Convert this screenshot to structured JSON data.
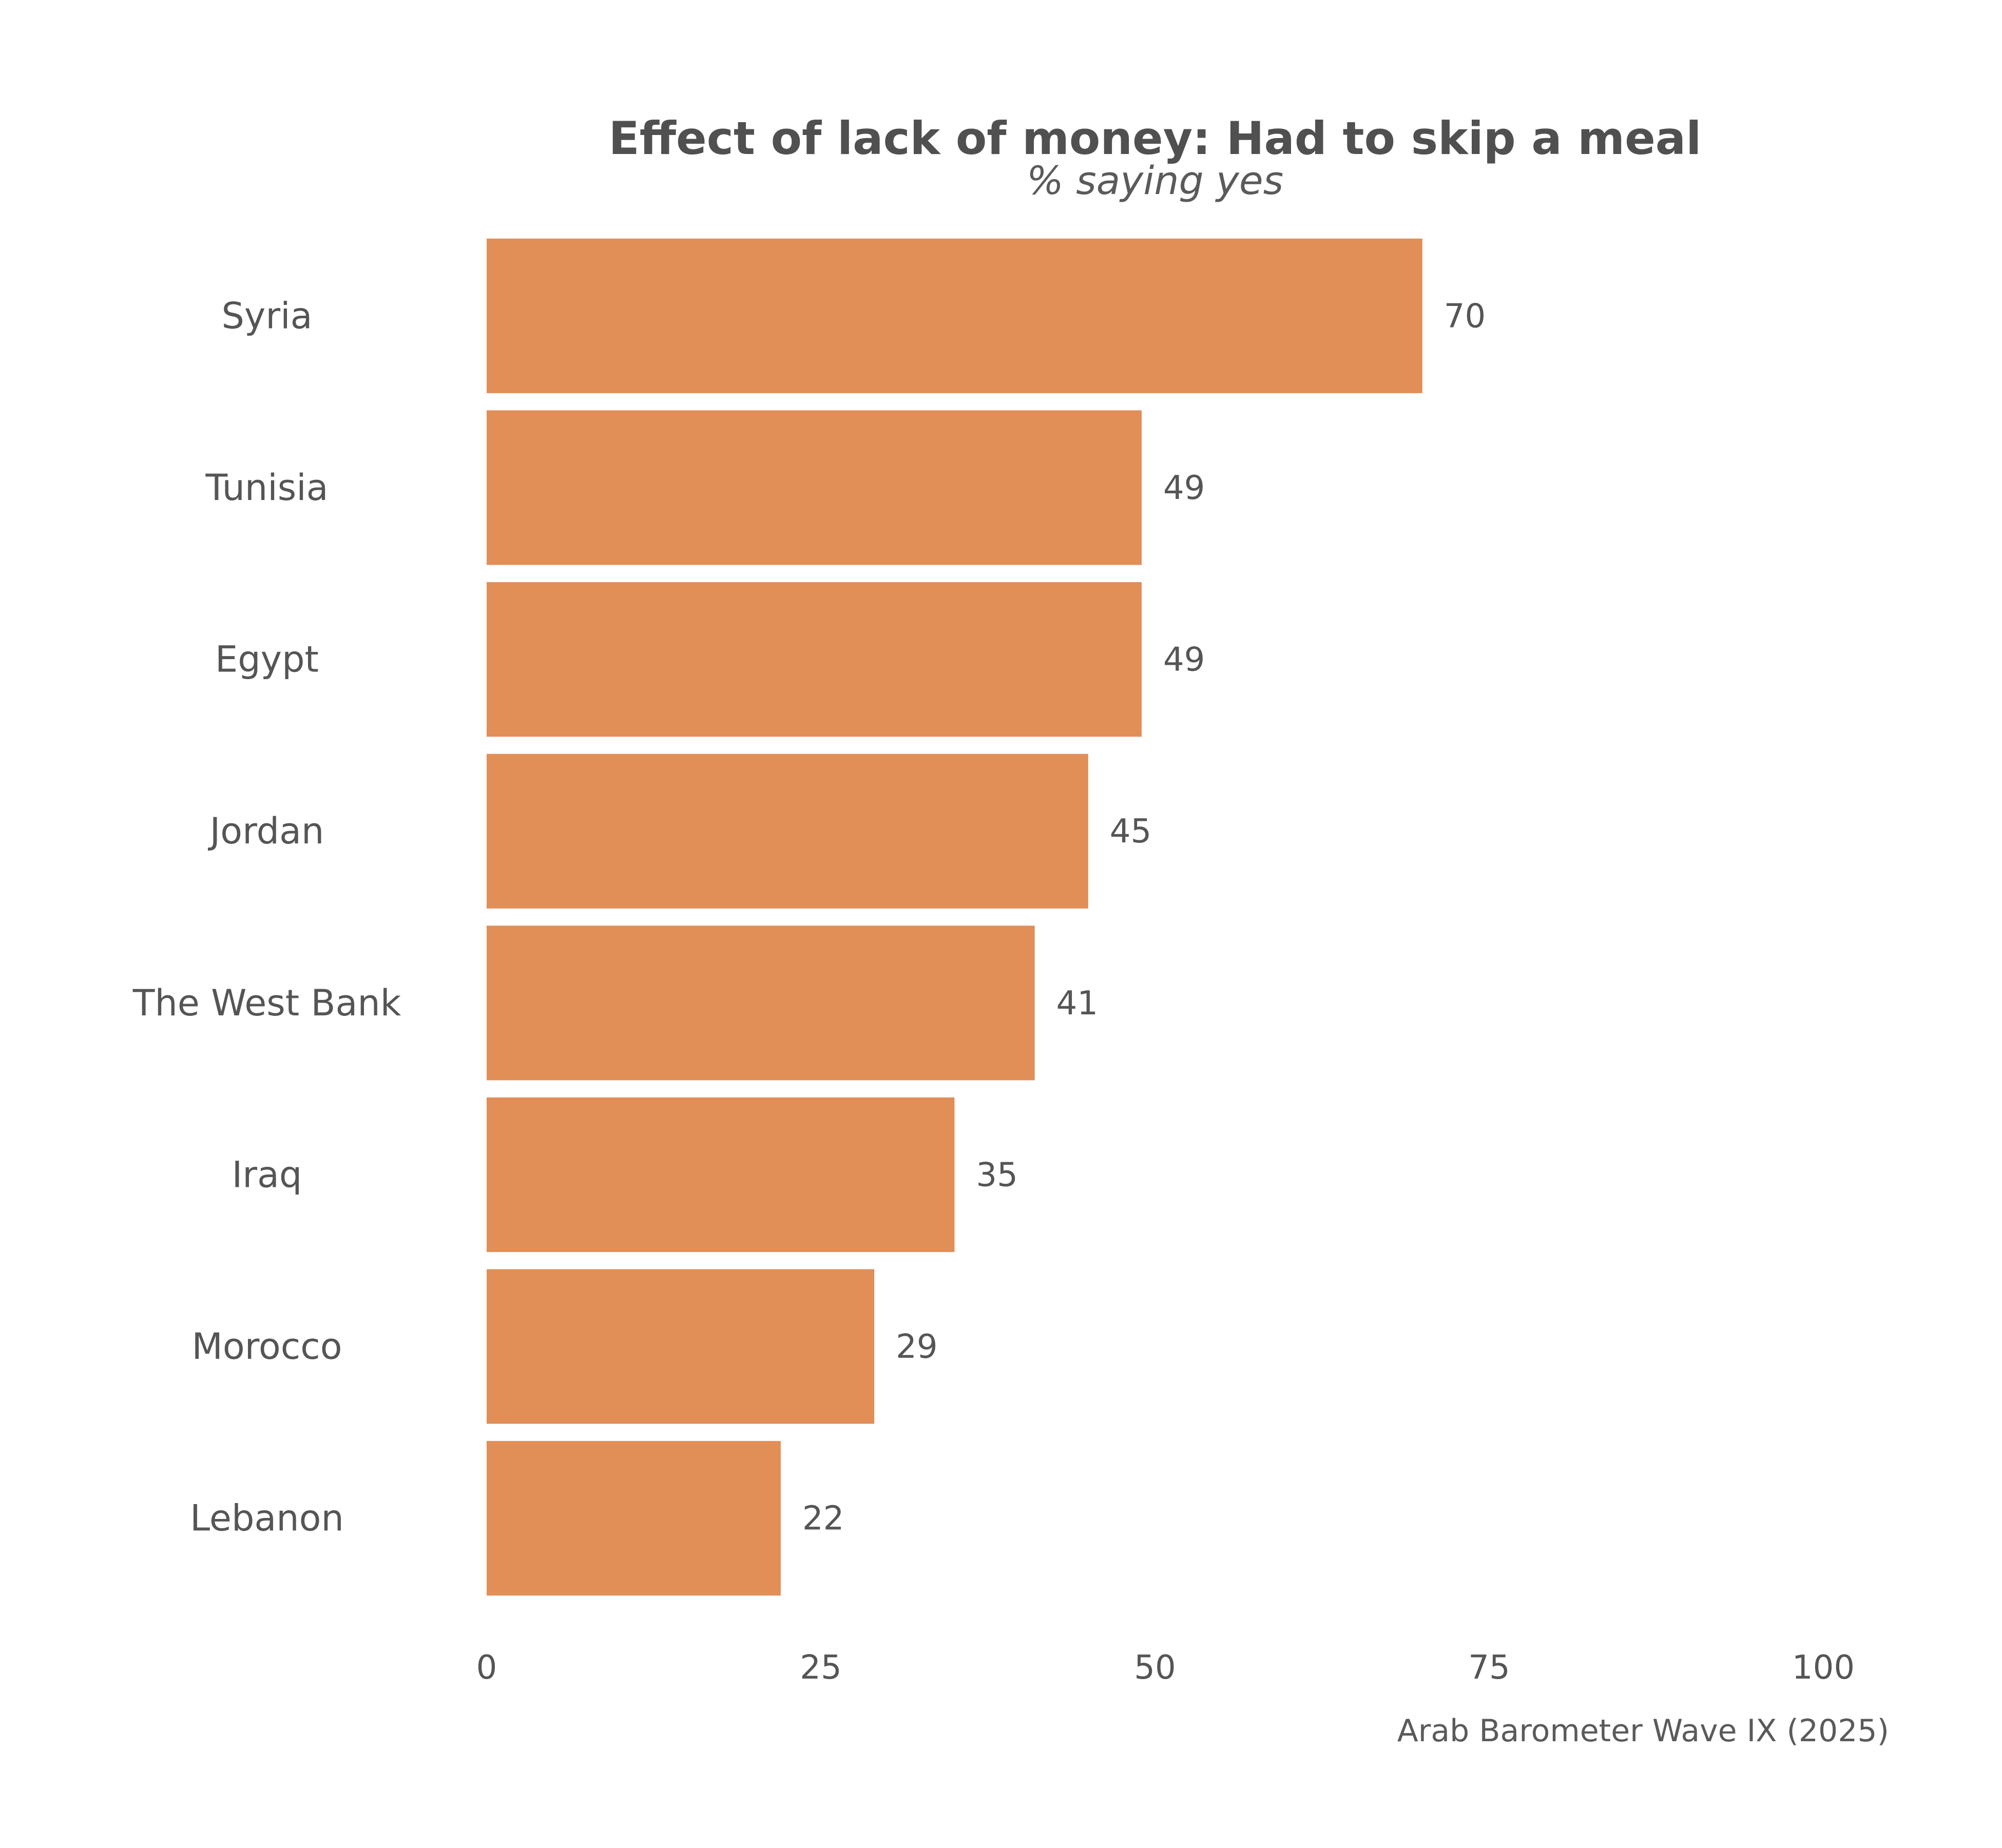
{
  "chart_data": {
    "type": "bar",
    "orientation": "horizontal",
    "title": "Effect of lack of money: Had to skip a meal",
    "subtitle": "% saying yes",
    "caption": "Arab Barometer Wave IX (2025)",
    "categories": [
      "Syria",
      "Tunisia",
      "Egypt",
      "Jordan",
      "The West Bank",
      "Iraq",
      "Morocco",
      "Lebanon"
    ],
    "values": [
      70,
      49,
      49,
      45,
      41,
      35,
      29,
      22
    ],
    "value_labels": [
      "70",
      "49",
      "49",
      "45",
      "41",
      "35",
      "29",
      "22"
    ],
    "xlim": [
      0,
      100
    ],
    "xticks": [
      0,
      25,
      50,
      75,
      100
    ],
    "xtick_labels": [
      "0",
      "25",
      "50",
      "75",
      "100"
    ],
    "grid": false,
    "legend": "none",
    "colors": {
      "bar": "#E18E57",
      "text": "#555555"
    }
  }
}
